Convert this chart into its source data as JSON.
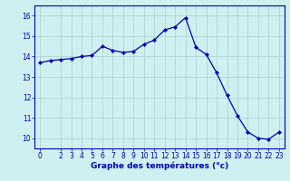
{
  "x": [
    0,
    1,
    2,
    3,
    4,
    5,
    6,
    7,
    8,
    9,
    10,
    11,
    12,
    13,
    14,
    15,
    16,
    17,
    18,
    19,
    20,
    21,
    22,
    23
  ],
  "y": [
    13.7,
    13.8,
    13.85,
    13.9,
    14.0,
    14.05,
    14.5,
    14.3,
    14.2,
    14.25,
    14.6,
    14.8,
    15.3,
    15.45,
    15.9,
    14.45,
    14.1,
    13.2,
    12.1,
    11.1,
    10.3,
    10.0,
    9.95,
    10.3
  ],
  "line_color": "#0000bb",
  "marker": "D",
  "marker_size": 2.0,
  "bg_color": "#cff0f0",
  "grid_color": "#aacece",
  "xlabel": "Graphe des températures (°c)",
  "xlabel_color": "#0000bb",
  "xlabel_fontsize": 6.5,
  "ylim": [
    9.5,
    16.5
  ],
  "xlim": [
    -0.5,
    23.5
  ],
  "yticks": [
    10,
    11,
    12,
    13,
    14,
    15,
    16
  ],
  "xticks": [
    0,
    2,
    3,
    4,
    5,
    6,
    7,
    8,
    9,
    10,
    11,
    12,
    13,
    14,
    15,
    16,
    17,
    18,
    19,
    20,
    21,
    22,
    23
  ],
  "tick_color": "#0000bb",
  "tick_fontsize": 5.5,
  "spine_color": "#0000bb",
  "linewidth": 0.9
}
